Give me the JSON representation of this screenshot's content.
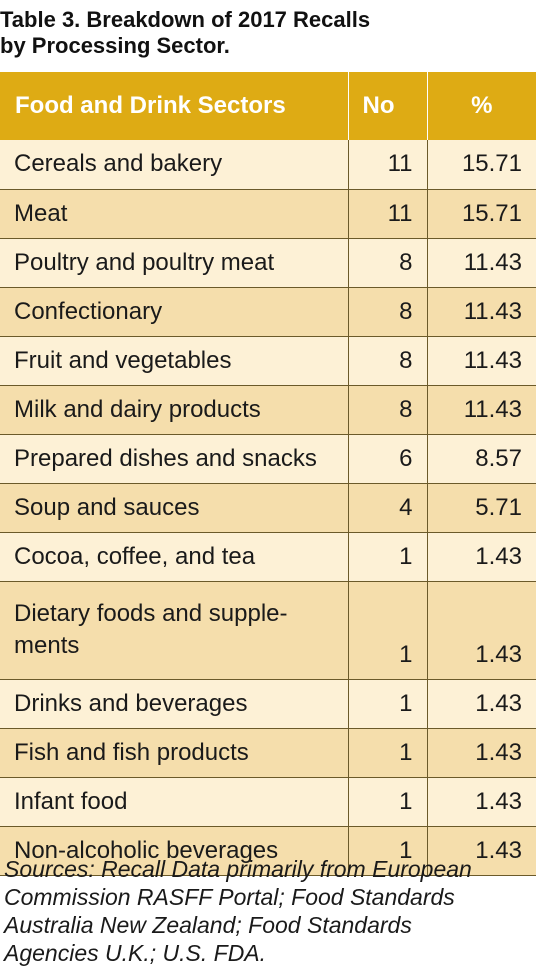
{
  "title": {
    "line1": "Table 3. Breakdown of 2017 Recalls",
    "line2": "by Processing Sector."
  },
  "table": {
    "headers": {
      "sector": "Food and Drink Sectors",
      "no": "No",
      "pct": "%"
    },
    "colors": {
      "header_bg": "#deab14",
      "row_light": "#fdf1d6",
      "row_dark": "#f5deac"
    },
    "rows": [
      {
        "sector": "Cereals and bakery",
        "no": "11",
        "pct": "15.71"
      },
      {
        "sector": "Meat",
        "no": "11",
        "pct": "15.71"
      },
      {
        "sector": "Poultry and poultry meat",
        "no": "8",
        "pct": "11.43"
      },
      {
        "sector": "Confectionary",
        "no": "8",
        "pct": "11.43"
      },
      {
        "sector": "Fruit and vegetables",
        "no": "8",
        "pct": "11.43"
      },
      {
        "sector": "Milk and dairy products",
        "no": "8",
        "pct": "11.43"
      },
      {
        "sector": "Prepared dishes and snacks",
        "no": "6",
        "pct": "8.57"
      },
      {
        "sector": "Soup and sauces",
        "no": "4",
        "pct": "5.71"
      },
      {
        "sector": "Cocoa, coffee, and tea",
        "no": "1",
        "pct": "1.43"
      },
      {
        "sector_line1": "Dietary foods and supple-",
        "sector_line2": "ments",
        "no": "1",
        "pct": "1.43"
      },
      {
        "sector": "Drinks and beverages",
        "no": "1",
        "pct": "1.43"
      },
      {
        "sector": "Fish and fish products",
        "no": "1",
        "pct": "1.43"
      },
      {
        "sector": "Infant food",
        "no": "1",
        "pct": "1.43"
      },
      {
        "sector": "Non-alcoholic beverages",
        "no": "1",
        "pct": "1.43"
      }
    ]
  },
  "sources": {
    "line1": "Sources: Recall Data primarily from European",
    "line2": "Commission RASFF Portal; Food Standards",
    "line3": "Australia New Zealand; Food Standards",
    "line4": "Agencies U.K.; U.S. FDA."
  }
}
